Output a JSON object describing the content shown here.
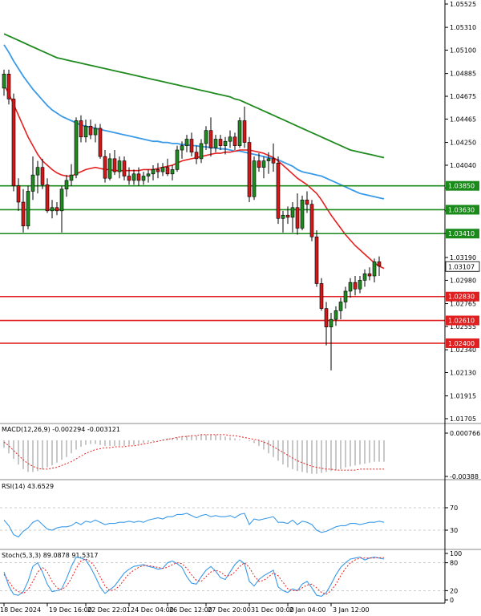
{
  "chart_data": {
    "type": "candlestick",
    "main": {
      "y_ticks": [
        "1.05525",
        "1.05310",
        "1.05100",
        "1.04885",
        "1.04675",
        "1.04465",
        "1.04250",
        "1.04040",
        "1.03830",
        "1.03620",
        "1.03410",
        "1.03190",
        "1.02980",
        "1.02765",
        "1.02555",
        "1.02340",
        "1.02130",
        "1.01915",
        "1.01705"
      ],
      "ylim": [
        1.01705,
        1.05525
      ],
      "current_price": "1.03107",
      "resistance_levels": [
        {
          "label": "1.03850",
          "value": 1.0385,
          "color": "#1a8a1a"
        },
        {
          "label": "1.03630",
          "value": 1.0363,
          "color": "#1a8a1a"
        },
        {
          "label": "1.03410",
          "value": 1.0341,
          "color": "#1a8a1a"
        }
      ],
      "support_levels": [
        {
          "label": "1.02830",
          "value": 1.0283,
          "color": "#e02020"
        },
        {
          "label": "1.02610",
          "value": 1.0261,
          "color": "#e02020"
        },
        {
          "label": "1.02400",
          "value": 1.024,
          "color": "#e02020"
        }
      ],
      "candles": [
        [
          1.0475,
          1.0492,
          1.0468,
          1.0488
        ],
        [
          1.0488,
          1.0492,
          1.046,
          1.0465
        ],
        [
          1.0465,
          1.047,
          1.038,
          1.0385
        ],
        [
          1.0385,
          1.0392,
          1.0362,
          1.037
        ],
        [
          1.037,
          1.0382,
          1.0342,
          1.0348
        ],
        [
          1.0348,
          1.0385,
          1.0345,
          1.038
        ],
        [
          1.038,
          1.0412,
          1.0372,
          1.0395
        ],
        [
          1.0395,
          1.0408,
          1.0378,
          1.0402
        ],
        [
          1.0402,
          1.041,
          1.0382,
          1.0386
        ],
        [
          1.0386,
          1.0392,
          1.036,
          1.0362
        ],
        [
          1.0362,
          1.0372,
          1.0355,
          1.0365
        ],
        [
          1.0365,
          1.037,
          1.0358,
          1.0362
        ],
        [
          1.0362,
          1.0385,
          1.0342,
          1.0382
        ],
        [
          1.0382,
          1.0395,
          1.0375,
          1.039
        ],
        [
          1.039,
          1.0405,
          1.0385,
          1.0395
        ],
        [
          1.0395,
          1.0448,
          1.0392,
          1.0445
        ],
        [
          1.0445,
          1.045,
          1.0425,
          1.043
        ],
        [
          1.043,
          1.0446,
          1.0425,
          1.044
        ],
        [
          1.044,
          1.0446,
          1.0428,
          1.0432
        ],
        [
          1.0432,
          1.0442,
          1.0425,
          1.0438
        ],
        [
          1.0438,
          1.0442,
          1.041,
          1.0412
        ],
        [
          1.0412,
          1.0418,
          1.0388,
          1.0392
        ],
        [
          1.0392,
          1.0415,
          1.039,
          1.041
        ],
        [
          1.041,
          1.0418,
          1.0395,
          1.0398
        ],
        [
          1.0398,
          1.0412,
          1.0392,
          1.0408
        ],
        [
          1.0408,
          1.0412,
          1.039,
          1.0394
        ],
        [
          1.0394,
          1.0402,
          1.0386,
          1.039
        ],
        [
          1.039,
          1.04,
          1.0386,
          1.0396
        ],
        [
          1.0396,
          1.0402,
          1.0385,
          1.039
        ],
        [
          1.039,
          1.0398,
          1.0386,
          1.0394
        ],
        [
          1.0394,
          1.04,
          1.0388,
          1.0396
        ],
        [
          1.0396,
          1.0404,
          1.039,
          1.04
        ],
        [
          1.04,
          1.0406,
          1.0392,
          1.0398
        ],
        [
          1.0398,
          1.0406,
          1.0394,
          1.0402
        ],
        [
          1.0402,
          1.041,
          1.0394,
          1.0396
        ],
        [
          1.0396,
          1.0404,
          1.039,
          1.04
        ],
        [
          1.04,
          1.0422,
          1.0398,
          1.0418
        ],
        [
          1.0418,
          1.0426,
          1.041,
          1.0422
        ],
        [
          1.0422,
          1.0432,
          1.0416,
          1.0428
        ],
        [
          1.0428,
          1.0434,
          1.0412,
          1.0416
        ],
        [
          1.0416,
          1.0422,
          1.0405,
          1.041
        ],
        [
          1.041,
          1.0428,
          1.0406,
          1.0424
        ],
        [
          1.0424,
          1.044,
          1.0418,
          1.0436
        ],
        [
          1.0436,
          1.0448,
          1.0412,
          1.042
        ],
        [
          1.042,
          1.0432,
          1.0416,
          1.0428
        ],
        [
          1.0428,
          1.0432,
          1.0418,
          1.0422
        ],
        [
          1.0422,
          1.043,
          1.0414,
          1.0426
        ],
        [
          1.0426,
          1.0436,
          1.042,
          1.043
        ],
        [
          1.043,
          1.0434,
          1.0418,
          1.0422
        ],
        [
          1.0422,
          1.0448,
          1.042,
          1.0445
        ],
        [
          1.0445,
          1.0458,
          1.042,
          1.0425
        ],
        [
          1.0425,
          1.043,
          1.037,
          1.0375
        ],
        [
          1.0375,
          1.0412,
          1.0372,
          1.0408
        ],
        [
          1.0408,
          1.0415,
          1.0398,
          1.0402
        ],
        [
          1.0402,
          1.0412,
          1.0392,
          1.0408
        ],
        [
          1.0408,
          1.0416,
          1.0396,
          1.041
        ],
        [
          1.041,
          1.0424,
          1.0398,
          1.0406
        ],
        [
          1.0406,
          1.0412,
          1.035,
          1.0355
        ],
        [
          1.0355,
          1.0362,
          1.0342,
          1.0358
        ],
        [
          1.0358,
          1.0366,
          1.035,
          1.0356
        ],
        [
          1.0356,
          1.037,
          1.0342,
          1.0365
        ],
        [
          1.0365,
          1.0378,
          1.034,
          1.0346
        ],
        [
          1.0346,
          1.0376,
          1.0344,
          1.0372
        ],
        [
          1.0372,
          1.038,
          1.036,
          1.0368
        ],
        [
          1.0368,
          1.0372,
          1.0334,
          1.0338
        ],
        [
          1.0338,
          1.0344,
          1.0292,
          1.0295
        ],
        [
          1.0295,
          1.03,
          1.027,
          1.0272
        ],
        [
          1.0272,
          1.0278,
          1.0238,
          1.0255
        ],
        [
          1.0255,
          1.0268,
          1.0215,
          1.0262
        ],
        [
          1.0262,
          1.0274,
          1.0256,
          1.027
        ],
        [
          1.027,
          1.0282,
          1.0262,
          1.0278
        ],
        [
          1.0278,
          1.0292,
          1.0272,
          1.0288
        ],
        [
          1.0288,
          1.03,
          1.0282,
          1.0296
        ],
        [
          1.0296,
          1.0302,
          1.0284,
          1.029
        ],
        [
          1.029,
          1.0302,
          1.0286,
          1.0298
        ],
        [
          1.0298,
          1.0308,
          1.0292,
          1.0304
        ],
        [
          1.0304,
          1.031,
          1.0298,
          1.0302
        ],
        [
          1.0302,
          1.0318,
          1.0296,
          1.0315
        ],
        [
          1.0315,
          1.032,
          1.0302,
          1.0311
        ]
      ],
      "ma_fast": [
        1.0478,
        1.047,
        1.046,
        1.045,
        1.044,
        1.043,
        1.0422,
        1.0414,
        1.0408,
        1.0404,
        1.04,
        1.0397,
        1.0395,
        1.0394,
        1.0394,
        1.0396,
        1.0398,
        1.04,
        1.0401,
        1.0402,
        1.0401,
        1.04,
        1.04,
        1.0399,
        1.0399,
        1.0399,
        1.0399,
        1.0399,
        1.0399,
        1.04,
        1.04,
        1.04,
        1.0401,
        1.0402,
        1.0403,
        1.0404,
        1.0406,
        1.0408,
        1.0409,
        1.041,
        1.0411,
        1.0412,
        1.0413,
        1.0414,
        1.0415,
        1.0415,
        1.0416,
        1.0416,
        1.0417,
        1.0418,
        1.0418,
        1.0418,
        1.0417,
        1.0416,
        1.0415,
        1.0413,
        1.0411,
        1.0408,
        1.0404,
        1.04,
        1.0396,
        1.0392,
        1.0389,
        1.0386,
        1.0382,
        1.0378,
        1.0372,
        1.0365,
        1.0358,
        1.0352,
        1.0346,
        1.034,
        1.0335,
        1.033,
        1.0326,
        1.0322,
        1.0318,
        1.0314,
        1.0311,
        1.0309
      ],
      "ma_mid": [
        1.0515,
        1.0508,
        1.05,
        1.0493,
        1.0486,
        1.048,
        1.0474,
        1.0469,
        1.0464,
        1.0459,
        1.0455,
        1.0452,
        1.0449,
        1.0447,
        1.0445,
        1.0443,
        1.0441,
        1.044,
        1.0439,
        1.0438,
        1.0437,
        1.0436,
        1.0435,
        1.0434,
        1.0433,
        1.0432,
        1.0431,
        1.043,
        1.0429,
        1.0428,
        1.0427,
        1.0426,
        1.0426,
        1.0425,
        1.0425,
        1.0424,
        1.0424,
        1.0423,
        1.0423,
        1.0422,
        1.0422,
        1.0421,
        1.0421,
        1.042,
        1.042,
        1.0419,
        1.0419,
        1.0418,
        1.0417,
        1.0417,
        1.0416,
        1.0415,
        1.0414,
        1.0413,
        1.0412,
        1.0411,
        1.041,
        1.0409,
        1.0407,
        1.0405,
        1.0403,
        1.04,
        1.0398,
        1.0397,
        1.0396,
        1.0395,
        1.0394,
        1.0392,
        1.039,
        1.0388,
        1.0386,
        1.0384,
        1.0382,
        1.038,
        1.0378,
        1.0377,
        1.0376,
        1.0375,
        1.0374,
        1.0373
      ],
      "ma_slow": [
        1.0525,
        1.0523,
        1.0521,
        1.0519,
        1.0517,
        1.0515,
        1.0513,
        1.0511,
        1.0509,
        1.0507,
        1.0505,
        1.0503,
        1.0502,
        1.0501,
        1.05,
        1.0499,
        1.0498,
        1.0497,
        1.0496,
        1.0495,
        1.0494,
        1.0493,
        1.0492,
        1.0491,
        1.049,
        1.0489,
        1.0488,
        1.0487,
        1.0486,
        1.0485,
        1.0484,
        1.0483,
        1.0482,
        1.0481,
        1.048,
        1.0479,
        1.0478,
        1.0477,
        1.0476,
        1.0475,
        1.0474,
        1.0473,
        1.0472,
        1.0471,
        1.047,
        1.0469,
        1.0468,
        1.0467,
        1.0465,
        1.0464,
        1.0462,
        1.046,
        1.0458,
        1.0456,
        1.0454,
        1.0452,
        1.045,
        1.0448,
        1.0446,
        1.0444,
        1.0442,
        1.044,
        1.0438,
        1.0436,
        1.0434,
        1.0432,
        1.043,
        1.0428,
        1.0426,
        1.0424,
        1.0422,
        1.042,
        1.0418,
        1.0417,
        1.0416,
        1.0415,
        1.0414,
        1.0413,
        1.0412,
        1.0411
      ],
      "ma_colors": {
        "fast": "#e62020",
        "mid": "#3a9ae8",
        "slow": "#1f8a1f"
      },
      "up_color": "#1f8a1f",
      "down_color": "#d21818"
    },
    "x_ticks": [
      {
        "label": "18 Dec 2024",
        "i": 0
      },
      {
        "label": "19 Dec 16:00",
        "i": 9
      },
      {
        "label": "22 Dec 22:01",
        "i": 17
      },
      {
        "label": "24 Dec 04:00",
        "i": 26
      },
      {
        "label": "26 Dec 12:00",
        "i": 34
      },
      {
        "label": "27 Dec 20:00",
        "i": 42
      },
      {
        "label": "31 Dec 00:00",
        "i": 51
      },
      {
        "label": "2 Jan 04:00",
        "i": 59
      },
      {
        "label": "3 Jan 12:00",
        "i": 68
      }
    ],
    "macd": {
      "label": "MACD(12,26,9) -0.002294 -0.003121",
      "y_ticks": [
        "0.000766",
        "-0.00388"
      ],
      "ylim": [
        -0.00388,
        0.000766
      ],
      "hist": [
        -0.0008,
        -0.0014,
        -0.002,
        -0.0026,
        -0.0031,
        -0.0034,
        -0.0034,
        -0.0033,
        -0.0031,
        -0.0029,
        -0.0027,
        -0.0024,
        -0.0021,
        -0.0018,
        -0.0014,
        -0.001,
        -0.0007,
        -0.0005,
        -0.0004,
        -0.0004,
        -0.0005,
        -0.0006,
        -0.0006,
        -0.0006,
        -0.0006,
        -0.0006,
        -0.0005,
        -0.0005,
        -0.0004,
        -0.0003,
        -0.0002,
        -0.0001,
        -0.0,
        0.0001,
        0.0002,
        0.0002,
        0.0003,
        0.0004,
        0.0005,
        0.0005,
        0.0005,
        0.0006,
        0.0006,
        0.0006,
        0.0006,
        0.0005,
        0.0004,
        0.0003,
        0.0002,
        0.0001,
        0.0,
        -0.0001,
        -0.0003,
        -0.0006,
        -0.001,
        -0.0014,
        -0.0018,
        -0.0022,
        -0.0026,
        -0.0029,
        -0.0031,
        -0.0033,
        -0.0034,
        -0.0035,
        -0.0036,
        -0.0036,
        -0.0035,
        -0.0034,
        -0.0033,
        -0.0032,
        -0.0031,
        -0.0029,
        -0.0028,
        -0.0027,
        -0.0026,
        -0.0025,
        -0.0024,
        -0.0023,
        -0.0023,
        -0.0023
      ],
      "signal": [
        -0.0002,
        -0.0006,
        -0.0011,
        -0.0016,
        -0.0021,
        -0.0025,
        -0.0028,
        -0.003,
        -0.0031,
        -0.0031,
        -0.003,
        -0.0029,
        -0.0027,
        -0.0025,
        -0.0023,
        -0.002,
        -0.0017,
        -0.0014,
        -0.0012,
        -0.001,
        -0.0009,
        -0.0008,
        -0.0008,
        -0.0007,
        -0.0007,
        -0.0007,
        -0.0006,
        -0.0006,
        -0.0005,
        -0.0004,
        -0.0003,
        -0.0002,
        -0.0001,
        0.0,
        0.0001,
        0.0002,
        0.0003,
        0.0004,
        0.0004,
        0.0005,
        0.0005,
        0.0006,
        0.0006,
        0.0006,
        0.0006,
        0.0006,
        0.0006,
        0.0005,
        0.0005,
        0.0004,
        0.0003,
        0.0002,
        0.0001,
        0.0,
        -0.0002,
        -0.0004,
        -0.0007,
        -0.001,
        -0.0013,
        -0.0016,
        -0.0019,
        -0.0022,
        -0.0024,
        -0.0026,
        -0.0028,
        -0.0029,
        -0.003,
        -0.0031,
        -0.0031,
        -0.0032,
        -0.0032,
        -0.0032,
        -0.0032,
        -0.0032,
        -0.0031,
        -0.0031,
        -0.0031,
        -0.0031,
        -0.0031,
        -0.0031
      ],
      "hist_color": "#b0b0b0",
      "signal_color": "#e62020"
    },
    "rsi": {
      "label": "RSI(14) 43.6529",
      "y_ticks": [
        "70",
        "30"
      ],
      "ylim": [
        0,
        100
      ],
      "values": [
        48,
        38,
        22,
        18,
        28,
        34,
        44,
        48,
        40,
        32,
        30,
        34,
        36,
        36,
        38,
        44,
        40,
        46,
        44,
        48,
        44,
        40,
        42,
        42,
        44,
        44,
        46,
        44,
        46,
        44,
        48,
        50,
        52,
        50,
        54,
        54,
        58,
        58,
        60,
        56,
        52,
        56,
        58,
        54,
        56,
        54,
        54,
        56,
        52,
        58,
        60,
        40,
        50,
        48,
        50,
        52,
        54,
        44,
        44,
        42,
        48,
        40,
        46,
        44,
        40,
        30,
        26,
        28,
        32,
        36,
        38,
        38,
        42,
        42,
        40,
        42,
        44,
        44,
        46,
        44
      ],
      "color": "#3a9ae8"
    },
    "stoch": {
      "label": "Stoch(5,3,3) 89.0878 91.5317",
      "y_ticks": [
        "100",
        "80",
        "20",
        "0"
      ],
      "ylim": [
        0,
        100
      ],
      "k": [
        60,
        30,
        12,
        10,
        18,
        40,
        72,
        80,
        60,
        34,
        18,
        20,
        24,
        46,
        72,
        92,
        90,
        86,
        70,
        50,
        28,
        14,
        22,
        30,
        44,
        58,
        66,
        72,
        74,
        76,
        72,
        70,
        66,
        68,
        80,
        84,
        78,
        70,
        50,
        36,
        34,
        50,
        64,
        72,
        62,
        48,
        44,
        60,
        76,
        86,
        78,
        40,
        30,
        44,
        52,
        58,
        64,
        28,
        20,
        16,
        24,
        20,
        34,
        40,
        26,
        10,
        8,
        16,
        34,
        54,
        70,
        80,
        88,
        90,
        92,
        86,
        90,
        92,
        90,
        88
      ],
      "d": [
        55,
        40,
        25,
        18,
        14,
        22,
        40,
        60,
        70,
        60,
        40,
        26,
        22,
        30,
        46,
        68,
        84,
        88,
        82,
        70,
        50,
        30,
        20,
        22,
        30,
        44,
        56,
        64,
        70,
        74,
        74,
        72,
        70,
        68,
        70,
        76,
        80,
        78,
        68,
        54,
        42,
        40,
        50,
        60,
        64,
        60,
        52,
        52,
        60,
        72,
        80,
        70,
        52,
        40,
        42,
        50,
        58,
        52,
        38,
        24,
        20,
        20,
        26,
        32,
        34,
        26,
        16,
        12,
        20,
        34,
        52,
        68,
        80,
        86,
        90,
        90,
        90,
        90,
        91,
        91
      ],
      "k_color": "#3a9ae8",
      "d_color": "#e62020"
    }
  }
}
